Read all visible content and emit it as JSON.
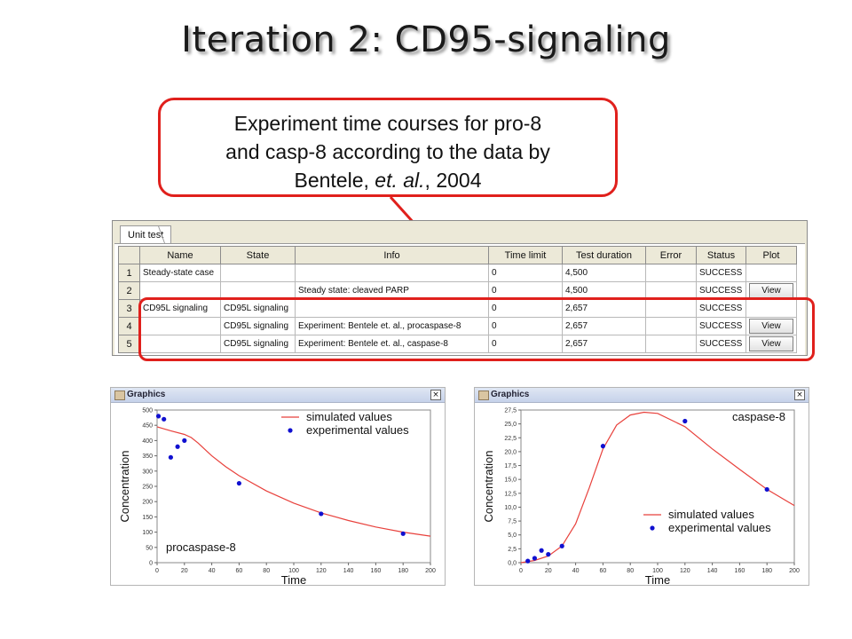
{
  "slide": {
    "title": "Iteration 2: CD95-signaling"
  },
  "callout": {
    "line1": "Experiment time courses for pro-8",
    "line2": "and casp-8 according to the data by",
    "line3_pre": "Bentele, ",
    "line3_ital": "et. al.",
    "line3_post": ", 2004"
  },
  "unit_test": {
    "tab_label": "Unit test",
    "columns": [
      "Name",
      "State",
      "Info",
      "Time limit",
      "Test duration",
      "Error",
      "Status",
      "Plot"
    ],
    "rows": [
      {
        "num": "1",
        "name": "Steady-state case",
        "state": "",
        "info": "",
        "time_limit": "0",
        "duration": "4,500",
        "error": "",
        "status": "SUCCESS",
        "plot": ""
      },
      {
        "num": "2",
        "name": "",
        "state": "",
        "info": "Steady state: cleaved PARP",
        "time_limit": "0",
        "duration": "4,500",
        "error": "",
        "status": "SUCCESS",
        "plot": "View"
      },
      {
        "num": "3",
        "name": "CD95L signaling",
        "state": "CD95L signaling",
        "info": "",
        "time_limit": "0",
        "duration": "2,657",
        "error": "",
        "status": "SUCCESS",
        "plot": ""
      },
      {
        "num": "4",
        "name": "",
        "state": "CD95L  signaling",
        "info": "Experiment: Bentele et. al., procaspase-8",
        "time_limit": "0",
        "duration": "2,657",
        "error": "",
        "status": "SUCCESS",
        "plot": "View"
      },
      {
        "num": "5",
        "name": "",
        "state": "CD95L  signaling",
        "info": "Experiment: Bentele et. al., caspase-8",
        "time_limit": "0",
        "duration": "2,657",
        "error": "",
        "status": "SUCCESS",
        "plot": "View"
      }
    ]
  },
  "graphics_left": {
    "window_title": "Graphics",
    "icon": "app-window-icon",
    "close_icon": "close-icon",
    "close_glyph": "×"
  },
  "graphics_right": {
    "window_title": "Graphics",
    "icon": "app-window-icon",
    "close_icon": "close-icon",
    "close_glyph": "×"
  },
  "chart_data": [
    {
      "type": "line",
      "xlabel": "Time",
      "ylabel": "Concentration",
      "annotation": "procaspase-8",
      "xlim": [
        0,
        200
      ],
      "ylim": [
        0,
        500
      ],
      "xticks": [
        "0",
        "20",
        "40",
        "60",
        "80",
        "100",
        "120",
        "140",
        "160",
        "180",
        "200"
      ],
      "yticks": [
        "0",
        "50",
        "100",
        "150",
        "200",
        "250",
        "300",
        "350",
        "400",
        "450",
        "500"
      ],
      "legend": [
        "simulated values",
        "experimental values"
      ],
      "legend_position": "top-right",
      "series": [
        {
          "name": "simulated values",
          "style": "line",
          "color": "#e8413c",
          "x": [
            0,
            10,
            20,
            25,
            30,
            40,
            50,
            60,
            80,
            100,
            120,
            140,
            160,
            180,
            200
          ],
          "y": [
            445,
            432,
            420,
            410,
            392,
            350,
            315,
            285,
            235,
            195,
            163,
            138,
            117,
            100,
            87
          ]
        },
        {
          "name": "experimental values",
          "style": "scatter",
          "color": "#1010d0",
          "x": [
            1,
            5,
            10,
            15,
            20,
            60,
            120,
            180
          ],
          "y": [
            480,
            470,
            345,
            380,
            400,
            260,
            160,
            95
          ]
        }
      ]
    },
    {
      "type": "line",
      "xlabel": "Time",
      "ylabel": "Concentration",
      "annotation": "caspase-8",
      "xlim": [
        0,
        200
      ],
      "ylim": [
        0,
        27.5
      ],
      "xticks": [
        "0",
        "20",
        "40",
        "60",
        "80",
        "100",
        "120",
        "140",
        "160",
        "180",
        "200"
      ],
      "yticks": [
        "0,0",
        "2,5",
        "5,0",
        "7,5",
        "10,0",
        "12,5",
        "15,0",
        "17,5",
        "20,0",
        "22,5",
        "25,0",
        "27,5"
      ],
      "legend": [
        "simulated values",
        "experimental values"
      ],
      "legend_position": "bottom-right",
      "series": [
        {
          "name": "simulated values",
          "style": "line",
          "color": "#e8413c",
          "x": [
            0,
            10,
            20,
            30,
            40,
            50,
            60,
            70,
            80,
            90,
            100,
            120,
            140,
            160,
            180,
            200
          ],
          "y": [
            0,
            0.4,
            1.2,
            3.0,
            7.0,
            13.5,
            20.5,
            24.8,
            26.6,
            27.1,
            26.9,
            24.5,
            20.5,
            16.8,
            13.2,
            10.3
          ]
        },
        {
          "name": "experimental values",
          "style": "scatter",
          "color": "#1010d0",
          "x": [
            5,
            10,
            15,
            20,
            30,
            60,
            120,
            180
          ],
          "y": [
            0.3,
            0.8,
            2.2,
            1.5,
            3.0,
            21.0,
            25.5,
            13.2
          ]
        }
      ]
    }
  ]
}
